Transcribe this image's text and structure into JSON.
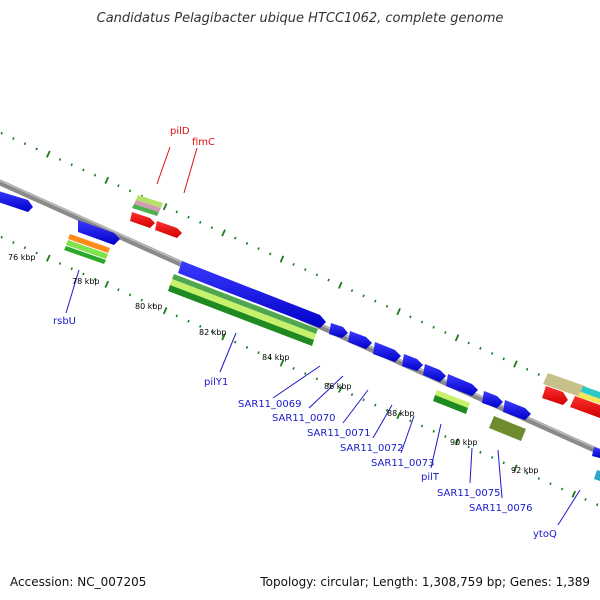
{
  "title": "Candidatus Pelagibacter ubique HTCC1062, complete genome",
  "footer": {
    "accession": "Accession: NC_007205",
    "summary": "Topology: circular; Length: 1,308,759 bp; Genes: 1,389"
  },
  "tick_labels": [
    "76 kbp",
    "78 kbp",
    "80 kbp",
    "82 kbp",
    "84 kbp",
    "86 kbp",
    "88 kbp",
    "90 kbp",
    "92 kbp"
  ],
  "colors": {
    "backbone": "#888888",
    "cds_feature": "#1a1af0",
    "gene_red": "#ee1111",
    "label_red": "#dd1111",
    "label_blue": "#1a1acc",
    "tick": "#1a7a1a"
  },
  "gene_labels": [
    {
      "text": "pilD",
      "color": "red"
    },
    {
      "text": "fimC",
      "color": "red"
    },
    {
      "text": "rsbU",
      "color": "blue"
    },
    {
      "text": "pilY1",
      "color": "blue"
    },
    {
      "text": "SAR11_0069",
      "color": "blue"
    },
    {
      "text": "SAR11_0070",
      "color": "blue"
    },
    {
      "text": "SAR11_0071",
      "color": "blue"
    },
    {
      "text": "SAR11_0072",
      "color": "blue"
    },
    {
      "text": "SAR11_0073",
      "color": "blue"
    },
    {
      "text": "pilT",
      "color": "blue"
    },
    {
      "text": "SAR11_0075",
      "color": "blue"
    },
    {
      "text": "SAR11_0076",
      "color": "blue"
    },
    {
      "text": "ytoQ",
      "color": "blue"
    }
  ]
}
